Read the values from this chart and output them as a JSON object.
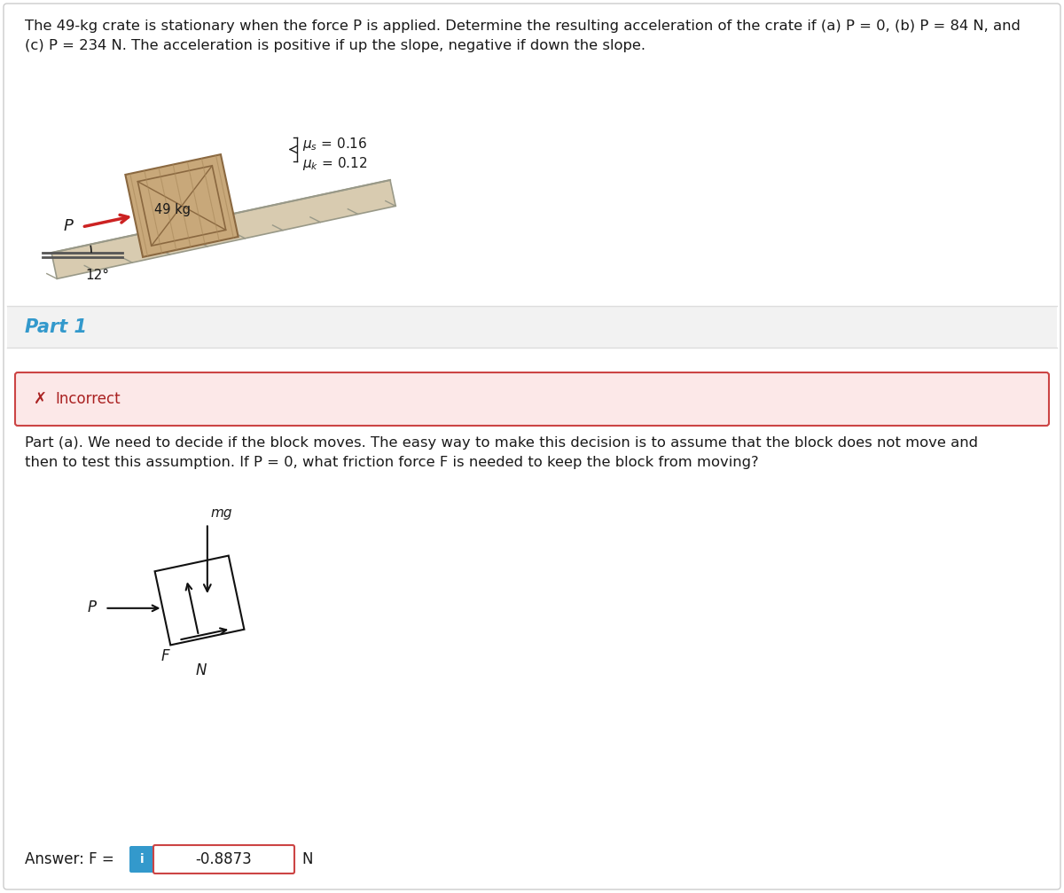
{
  "title_line1": "The 49-kg crate is stationary when the force P is applied. Determine the resulting acceleration of the crate if (a) P = 0, (b) P = 84 N, and",
  "title_line2": "(c) P = 234 N. The acceleration is positive if up the slope, negative if down the slope.",
  "mu_s_label": "μs = 0.16",
  "mu_k_label": "μk = 0.12",
  "mass_label": "49 kg",
  "angle_label": "12°",
  "P_label": "P",
  "part1_label": "Part 1",
  "incorrect_text": "Incorrect",
  "explanation_line1": "Part (a). We need to decide if the block moves. The easy way to make this decision is to assume that the block does not move and",
  "explanation_line2": "then to test this assumption. If P = 0, what friction force F is needed to keep the block from moving?",
  "mg_label": "mg",
  "F_label": "F",
  "N_label": "N",
  "answer_prefix": "Answer: F =",
  "answer_value": "-0.8873",
  "answer_unit": "N",
  "info_letter": "i",
  "bg_white": "#ffffff",
  "bg_light": "#f2f2f2",
  "border_light": "#cccccc",
  "border_section": "#dddddd",
  "text_dark": "#1a1a1a",
  "text_medium": "#333333",
  "blue_part": "#3399cc",
  "red_incorrect_bg": "#fce8e8",
  "red_incorrect_border": "#cc4444",
  "red_x": "#aa2222",
  "red_incorrect_text": "#aa2222",
  "red_answer_border": "#cc4444",
  "blue_info": "#3399cc",
  "slope_top": "#c8b88a",
  "slope_body": "#d8cbb0",
  "slope_edge": "#999988",
  "crate_face": "#c8a87a",
  "crate_edge": "#8a6840",
  "crate_inner": "#b89868",
  "crate_stripe": "#a8885a",
  "arrow_red": "#cc2222",
  "arrow_black": "#111111",
  "fbd_box": "#111111"
}
